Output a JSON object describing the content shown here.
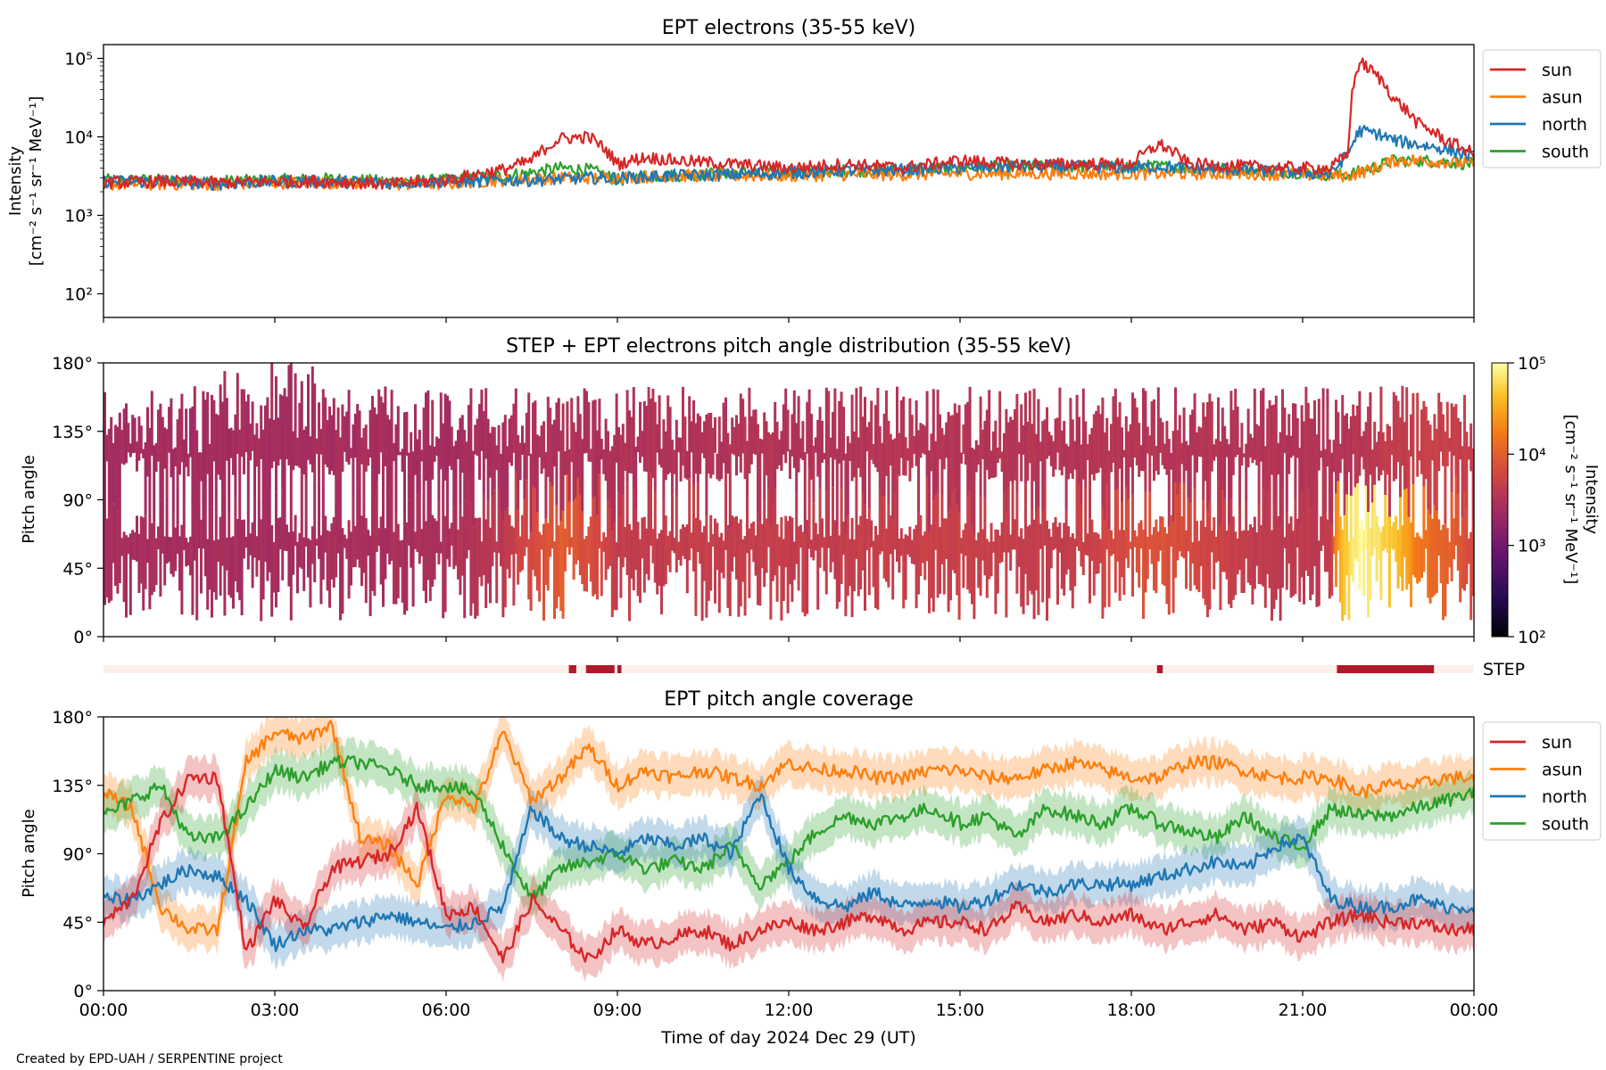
{
  "footer": {
    "credit": "Created by EPD-UAH / SERPENTINE project"
  },
  "shared": {
    "xlabel": "Time of day 2024 Dec 29 (UT)",
    "x_ticks": [
      "00:00",
      "03:00",
      "06:00",
      "09:00",
      "12:00",
      "15:00",
      "18:00",
      "21:00",
      "00:00"
    ],
    "xlim_hours": [
      0,
      24
    ]
  },
  "colors": {
    "sun": "#d62728",
    "asun": "#ff7f0e",
    "north": "#1f77b4",
    "south": "#2ca02c"
  },
  "chart_data": [
    {
      "type": "line",
      "title": "EPT electrons (35-55 keV)",
      "ylabel_line1": "Intensity",
      "ylabel_line2": "[cm⁻² s⁻¹ sr⁻¹ MeV⁻¹]",
      "yscale": "log",
      "ylim": [
        50,
        150000
      ],
      "y_ticks": [
        {
          "value": 100,
          "label": "10²"
        },
        {
          "value": 1000,
          "label": "10³"
        },
        {
          "value": 10000,
          "label": "10⁴"
        },
        {
          "value": 100000,
          "label": "10⁵"
        }
      ],
      "legend_placement": "outside-right",
      "legend": [
        "sun",
        "asun",
        "north",
        "south"
      ],
      "x": [
        0,
        1,
        2,
        3,
        4,
        5,
        6,
        6.5,
        7,
        7.5,
        8,
        8.5,
        9,
        9.5,
        10,
        11,
        12,
        13,
        14,
        15,
        16,
        17,
        18,
        18.5,
        19,
        20,
        21,
        21.5,
        21.8,
        22,
        22.3,
        22.6,
        23,
        23.5,
        24
      ],
      "series": [
        {
          "name": "sun",
          "values": [
            2600,
            2700,
            2600,
            2700,
            2700,
            2500,
            2800,
            3300,
            3800,
            5000,
            9500,
            10000,
            4500,
            5500,
            5000,
            4500,
            4000,
            4500,
            4000,
            5000,
            4500,
            4500,
            4500,
            8000,
            4500,
            4200,
            4000,
            4000,
            6000,
            90000,
            60000,
            30000,
            15000,
            9000,
            6000
          ]
        },
        {
          "name": "asun",
          "values": [
            2500,
            2500,
            2500,
            2600,
            2600,
            2500,
            2500,
            2700,
            2800,
            2900,
            3000,
            3000,
            3100,
            3100,
            3200,
            3200,
            3200,
            3300,
            3300,
            3400,
            3400,
            3400,
            3400,
            3400,
            3400,
            3400,
            3300,
            3200,
            3200,
            3500,
            4000,
            5000,
            5000,
            4800,
            4500
          ]
        },
        {
          "name": "north",
          "values": [
            2700,
            2700,
            2500,
            2700,
            2700,
            2600,
            2700,
            2700,
            2800,
            2800,
            2900,
            3000,
            3000,
            3100,
            3200,
            3300,
            3500,
            3700,
            3800,
            4000,
            4200,
            4200,
            4000,
            4200,
            4000,
            3800,
            3500,
            3300,
            6000,
            12000,
            11000,
            9000,
            8000,
            7000,
            5500
          ]
        },
        {
          "name": "south",
          "values": [
            2800,
            2800,
            2700,
            2800,
            2900,
            2700,
            2800,
            3000,
            3200,
            3500,
            4000,
            3800,
            2800,
            3200,
            3200,
            3500,
            3600,
            3700,
            3800,
            4000,
            4200,
            4200,
            4200,
            4200,
            4000,
            3800,
            3500,
            3300,
            3300,
            3600,
            4200,
            5000,
            5000,
            4800,
            4500
          ]
        }
      ]
    },
    {
      "type": "heatmap",
      "title": "STEP + EPT electrons pitch angle distribution (35-55 keV)",
      "ylabel": "Pitch angle",
      "ylim": [
        0,
        180
      ],
      "y_ticks": [
        "0°",
        "45°",
        "90°",
        "135°",
        "180°"
      ],
      "colorbar": {
        "label_line1": "Intensity",
        "label_line2": "[cm⁻² s⁻¹ sr⁻¹ MeV⁻¹]",
        "scale": "log",
        "range": [
          100,
          100000
        ],
        "ticks": [
          "10²",
          "10³",
          "10⁴",
          "10⁵"
        ],
        "colormap": "inferno"
      },
      "description_values": {
        "x": [
          0,
          2,
          4,
          6,
          7,
          8,
          9,
          11,
          13,
          15,
          17,
          18.5,
          20,
          21.5,
          22,
          23,
          24
        ],
        "sun_sector_intensity": [
          2600,
          2600,
          2700,
          2800,
          3800,
          9500,
          4500,
          4500,
          4500,
          5000,
          4500,
          8000,
          4200,
          4000,
          90000,
          15000,
          6000
        ],
        "asun_sector_intensity": [
          2500,
          2500,
          2600,
          2500,
          2800,
          3000,
          3100,
          3200,
          3300,
          3400,
          3400,
          3400,
          3400,
          3200,
          3500,
          5000,
          4500
        ]
      }
    },
    {
      "type": "bar",
      "title": "",
      "label": "STEP",
      "segments_hours": [
        [
          8.15,
          8.28
        ],
        [
          8.45,
          8.95
        ],
        [
          9.0,
          9.07
        ],
        [
          18.45,
          18.55
        ],
        [
          21.6,
          23.3
        ]
      ]
    },
    {
      "type": "line",
      "title": "EPT pitch angle coverage",
      "ylabel": "Pitch angle",
      "ylim": [
        0,
        180
      ],
      "y_ticks": [
        "0°",
        "45°",
        "90°",
        "135°",
        "180°"
      ],
      "legend_placement": "outside-right",
      "legend": [
        "sun",
        "asun",
        "north",
        "south"
      ],
      "x": [
        0,
        0.5,
        1,
        1.5,
        2,
        2.5,
        3,
        3.5,
        4,
        4.5,
        5,
        5.5,
        6,
        6.5,
        7,
        7.5,
        8,
        8.5,
        9,
        9.5,
        10,
        10.5,
        11,
        11.5,
        12,
        12.5,
        13,
        13.5,
        14,
        14.5,
        15,
        15.5,
        16,
        16.5,
        17,
        17.5,
        18,
        18.5,
        19,
        19.5,
        20,
        20.5,
        21,
        21.5,
        22,
        22.5,
        23,
        23.5,
        24
      ],
      "series": [
        {
          "name": "sun",
          "values": [
            45,
            60,
            110,
            140,
            140,
            25,
            60,
            40,
            80,
            85,
            90,
            120,
            50,
            55,
            20,
            60,
            40,
            20,
            40,
            30,
            35,
            40,
            30,
            40,
            45,
            40,
            45,
            50,
            40,
            45,
            45,
            40,
            55,
            45,
            50,
            45,
            50,
            40,
            45,
            50,
            40,
            45,
            35,
            45,
            50,
            45,
            45,
            40,
            40
          ]
        },
        {
          "name": "asun",
          "values": [
            130,
            120,
            55,
            40,
            40,
            150,
            170,
            165,
            175,
            100,
            95,
            70,
            130,
            120,
            170,
            125,
            140,
            160,
            135,
            145,
            140,
            145,
            140,
            135,
            150,
            145,
            145,
            140,
            140,
            145,
            145,
            140,
            140,
            145,
            150,
            145,
            140,
            140,
            150,
            150,
            145,
            140,
            140,
            140,
            130,
            135,
            135,
            140,
            140
          ]
        },
        {
          "name": "north",
          "values": [
            60,
            60,
            70,
            80,
            75,
            60,
            30,
            40,
            40,
            45,
            50,
            45,
            40,
            45,
            55,
            120,
            100,
            95,
            90,
            100,
            95,
            100,
            90,
            130,
            80,
            60,
            55,
            65,
            55,
            60,
            55,
            60,
            70,
            65,
            70,
            70,
            70,
            75,
            80,
            85,
            80,
            95,
            100,
            60,
            55,
            55,
            60,
            55,
            55
          ]
        },
        {
          "name": "south",
          "values": [
            115,
            125,
            135,
            100,
            100,
            120,
            145,
            140,
            150,
            150,
            145,
            135,
            135,
            130,
            95,
            60,
            80,
            85,
            90,
            80,
            85,
            80,
            95,
            70,
            85,
            105,
            115,
            110,
            115,
            120,
            110,
            115,
            100,
            120,
            115,
            110,
            120,
            110,
            105,
            100,
            115,
            100,
            95,
            120,
            115,
            115,
            120,
            125,
            130
          ]
        }
      ]
    }
  ]
}
